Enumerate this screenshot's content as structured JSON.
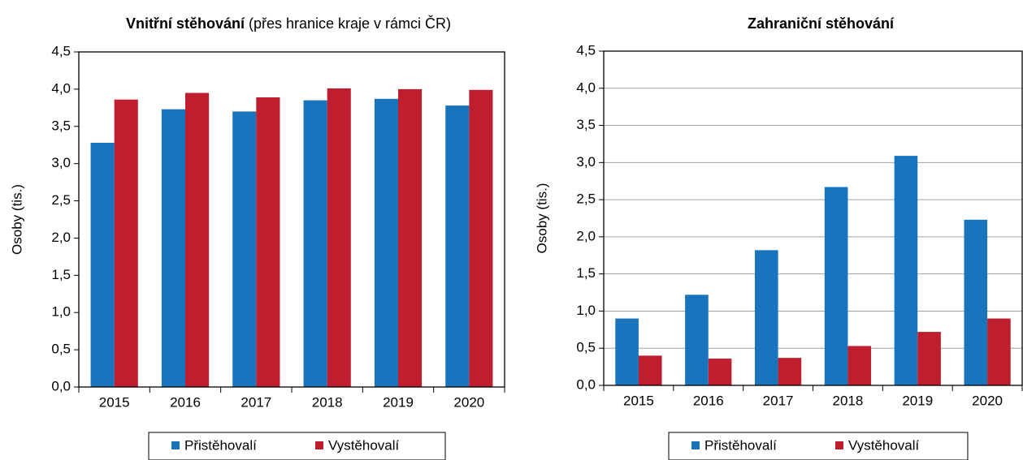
{
  "chart_data": [
    {
      "type": "bar",
      "title": "Vnitřní stěhování",
      "subtitle": "(přes hranice kraje v rámci ČR)",
      "y_label": "Osoby (tis.)",
      "categories": [
        "2015",
        "2016",
        "2017",
        "2018",
        "2019",
        "2020"
      ],
      "series": [
        {
          "name": "Přistěhovalí",
          "color": "#1874bc",
          "values": [
            3.28,
            3.73,
            3.7,
            3.85,
            3.87,
            3.78
          ]
        },
        {
          "name": "Vystěhovalí",
          "color": "#be1e2d",
          "values": [
            3.86,
            3.95,
            3.89,
            4.01,
            4.0,
            3.99
          ]
        }
      ],
      "ylim": [
        0,
        4.5
      ],
      "yticks": [
        {
          "value": 0,
          "label": "0,0"
        },
        {
          "value": 0.5,
          "label": "0,5"
        },
        {
          "value": 1,
          "label": "1,0"
        },
        {
          "value": 1.5,
          "label": "1,5"
        },
        {
          "value": 2,
          "label": "2,0"
        },
        {
          "value": 2.5,
          "label": "2,5"
        },
        {
          "value": 3,
          "label": "3,0"
        },
        {
          "value": 3.5,
          "label": "3,5"
        },
        {
          "value": 4,
          "label": "4,0"
        },
        {
          "value": 4.5,
          "label": "4,5"
        }
      ],
      "grid": false,
      "legend": "bottom"
    },
    {
      "type": "bar",
      "title": "Zahraniční stěhování",
      "y_label": "Osoby (tis.)",
      "categories": [
        "2015",
        "2016",
        "2017",
        "2018",
        "2019",
        "2020"
      ],
      "series": [
        {
          "name": "Přistěhovalí",
          "color": "#1874bc",
          "values": [
            0.9,
            1.22,
            1.82,
            2.67,
            3.09,
            2.23
          ]
        },
        {
          "name": "Vystěhovalí",
          "color": "#be1e2d",
          "values": [
            0.4,
            0.36,
            0.37,
            0.53,
            0.72,
            0.9
          ]
        }
      ],
      "ylim": [
        0,
        4.5
      ],
      "yticks": [
        {
          "value": 0,
          "label": "0,0"
        },
        {
          "value": 0.5,
          "label": "0,5"
        },
        {
          "value": 1,
          "label": "1,0"
        },
        {
          "value": 1.5,
          "label": "1,5"
        },
        {
          "value": 2,
          "label": "2,0"
        },
        {
          "value": 2.5,
          "label": "2,5"
        },
        {
          "value": 3,
          "label": "3,0"
        },
        {
          "value": 3.5,
          "label": "3,5"
        },
        {
          "value": 4,
          "label": "4,0"
        },
        {
          "value": 4.5,
          "label": "4,5"
        }
      ],
      "grid": true,
      "legend": "bottom"
    }
  ]
}
